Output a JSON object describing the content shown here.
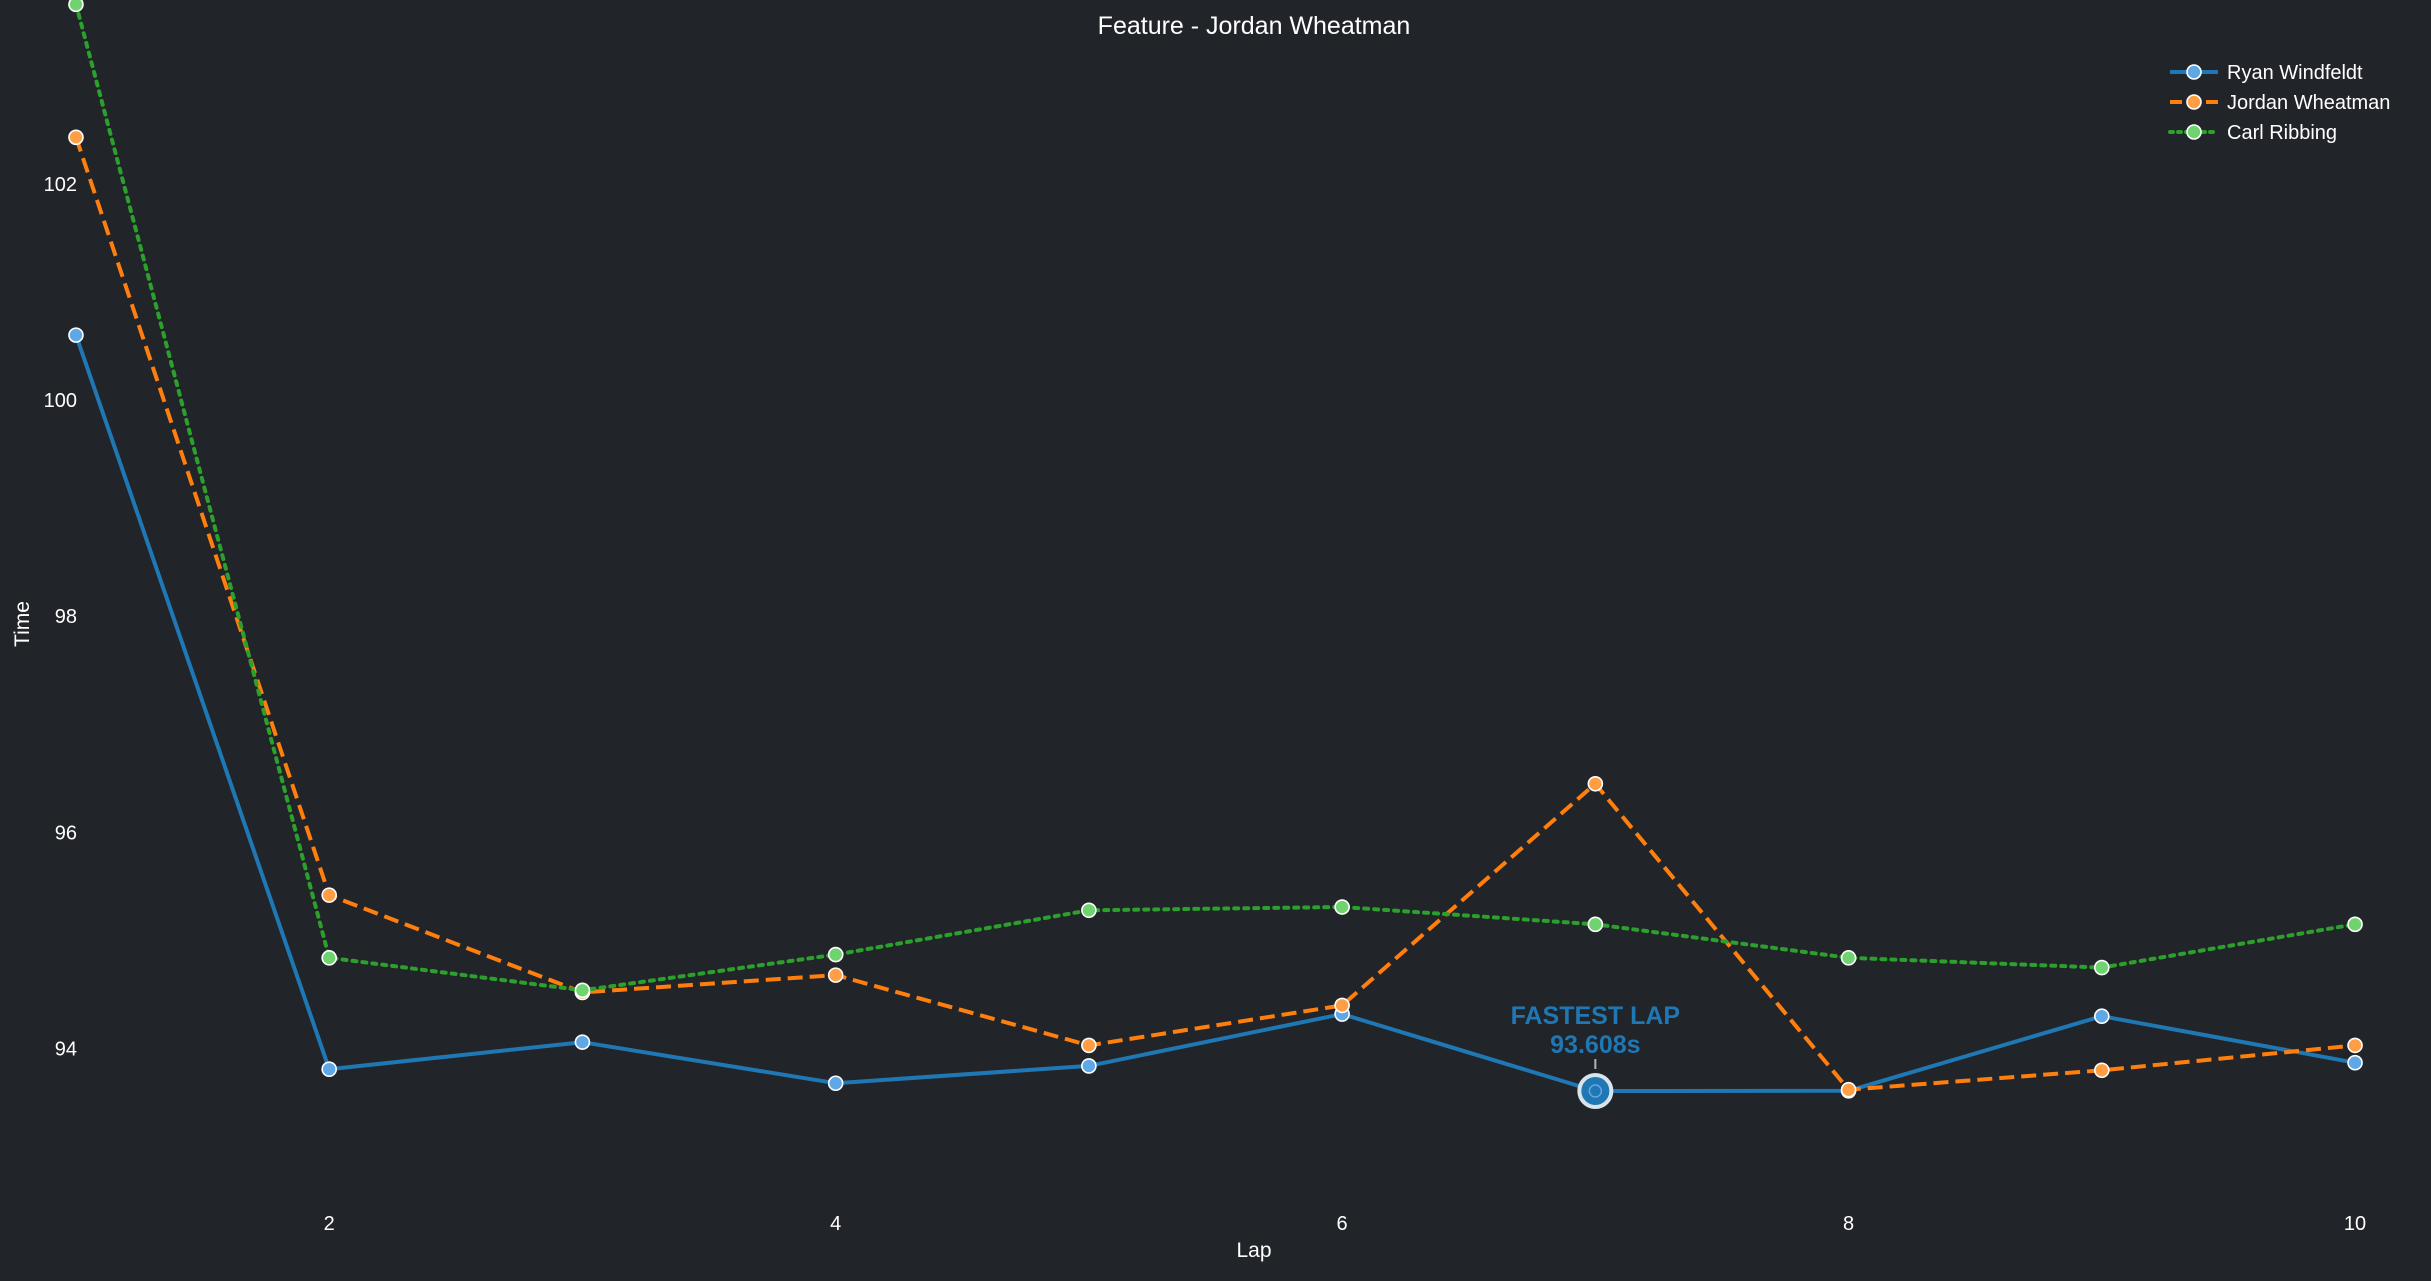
{
  "chart_data": {
    "type": "line",
    "title": "Feature - Jordan Wheatman",
    "xlabel": "Lap",
    "ylabel": "Time",
    "xlim": [
      0.7,
      10.3
    ],
    "ylim": [
      92.6,
      103.7
    ],
    "xticks": [
      2,
      4,
      6,
      8,
      10
    ],
    "yticks": [
      94,
      96,
      98,
      100,
      102
    ],
    "grid": false,
    "legend_position": "top-right",
    "x": [
      1,
      2,
      3,
      4,
      5,
      6,
      7,
      8,
      9,
      10
    ],
    "series": [
      {
        "name": "Ryan Windfeldt",
        "color": "#1f77b4",
        "marker_color": "#5fa8e8",
        "dash": "solid",
        "values": [
          100.6,
          93.81,
          94.06,
          93.68,
          93.84,
          94.32,
          93.608,
          93.61,
          94.3,
          93.87
        ]
      },
      {
        "name": "Jordan Wheatman",
        "color": "#ff7f0e",
        "marker_color": "#ff9e45",
        "dash": "dashed",
        "values": [
          102.43,
          95.42,
          94.52,
          94.68,
          94.03,
          94.4,
          96.45,
          93.62,
          93.8,
          94.03
        ]
      },
      {
        "name": "Carl Ribbing",
        "color": "#2ca02c",
        "marker_color": "#6fd36f",
        "dash": "dotted",
        "values": [
          103.66,
          94.84,
          94.54,
          94.87,
          95.28,
          95.31,
          95.15,
          94.84,
          94.75,
          95.15
        ]
      }
    ],
    "annotation": {
      "label": "FASTEST LAP",
      "value_text": "93.608s",
      "x": 7,
      "y": 93.608,
      "color": "#1f77b4"
    }
  }
}
